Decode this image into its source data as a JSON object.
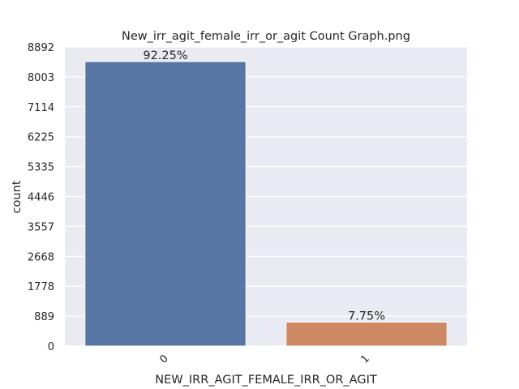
{
  "chart_data": {
    "type": "bar",
    "title": "New_irr_agit_female_irr_or_agit Count Graph.png",
    "xlabel": "NEW_IRR_AGIT_FEMALE_IRR_OR_AGIT",
    "ylabel": "count",
    "categories": [
      "0",
      "1"
    ],
    "values": [
      8459,
      711
    ],
    "data_labels": [
      "92.25%",
      "7.75%"
    ],
    "yticks": [
      0,
      889,
      1778,
      2668,
      3557,
      4446,
      5335,
      6225,
      7114,
      8003,
      8892
    ],
    "ylim": [
      0,
      8892
    ],
    "grid": true,
    "colors": {
      "bars": [
        "#5875a4",
        "#cc8963"
      ],
      "plot_background": "#eaeaf2",
      "gridline": "#ffffff"
    }
  }
}
